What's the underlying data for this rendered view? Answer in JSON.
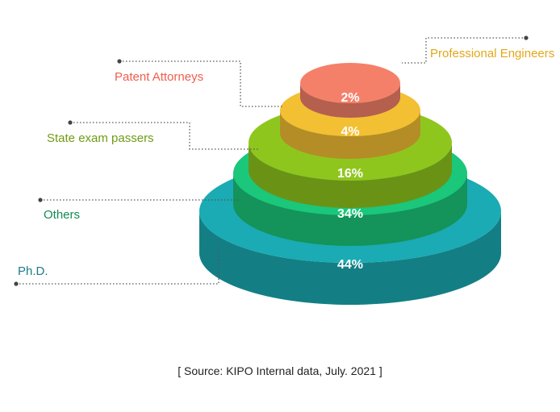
{
  "chart_data": {
    "type": "pie",
    "style": "stacked-pyramid",
    "slices": [
      {
        "label": "Ph.D.",
        "value": 44,
        "display": "44%",
        "color": "#1aabb4"
      },
      {
        "label": "Others",
        "value": 34,
        "display": "34%",
        "color": "#1bc77a"
      },
      {
        "label": "State exam passers",
        "value": 16,
        "display": "16%",
        "color": "#8fc61e"
      },
      {
        "label": "Patent Attorneys",
        "value": 4,
        "display": "4%",
        "color": "#f3bf33"
      },
      {
        "label": "Professional Engineers",
        "value": 2,
        "display": "2%",
        "color": "#f5806a"
      }
    ],
    "label_colors": {
      "Ph.D.": "#1a7c85",
      "Others": "#138a54",
      "State exam passers": "#6f9b14",
      "Patent Attorneys": "#ee5d4e",
      "Professional Engineers": "#e3a719"
    }
  },
  "source": "[ Source: KIPO Internal data, July. 2021 ]"
}
